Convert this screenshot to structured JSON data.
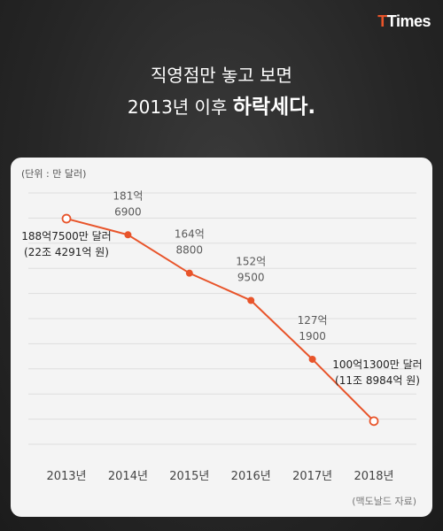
{
  "brand": {
    "prefix": "T",
    "name": "Times"
  },
  "headline": {
    "line1": "직영점만 놓고 보면",
    "line2_prefix": "2013년 이후 ",
    "line2_emphasis": "하락세다."
  },
  "unit_label": "(단위 : 만 달러)",
  "source": "(맥도날드 자료)",
  "colors": {
    "line": "#e8542a",
    "background": "#2b2b2b",
    "card": "#f4f4f4"
  },
  "chart_data": {
    "type": "line",
    "categories": [
      "2013년",
      "2014년",
      "2015년",
      "2016년",
      "2017년",
      "2018년"
    ],
    "values": [
      1887500,
      1816900,
      1648800,
      1529500,
      1271900,
      1001300
    ],
    "ylim": [
      900000,
      2000000
    ],
    "grid": true,
    "annotations": [
      {
        "lines": [
          "188억7500만 달러",
          "(22조 4291억 원)"
        ]
      },
      {
        "lines": [
          "181억",
          "6900"
        ]
      },
      {
        "lines": [
          "164억",
          "8800"
        ]
      },
      {
        "lines": [
          "152억",
          "9500"
        ]
      },
      {
        "lines": [
          "127억",
          "1900"
        ]
      },
      {
        "lines": [
          "100억1300만 달러",
          "(11조 8984억 원)"
        ]
      }
    ],
    "hollow_markers": [
      0,
      5
    ]
  }
}
